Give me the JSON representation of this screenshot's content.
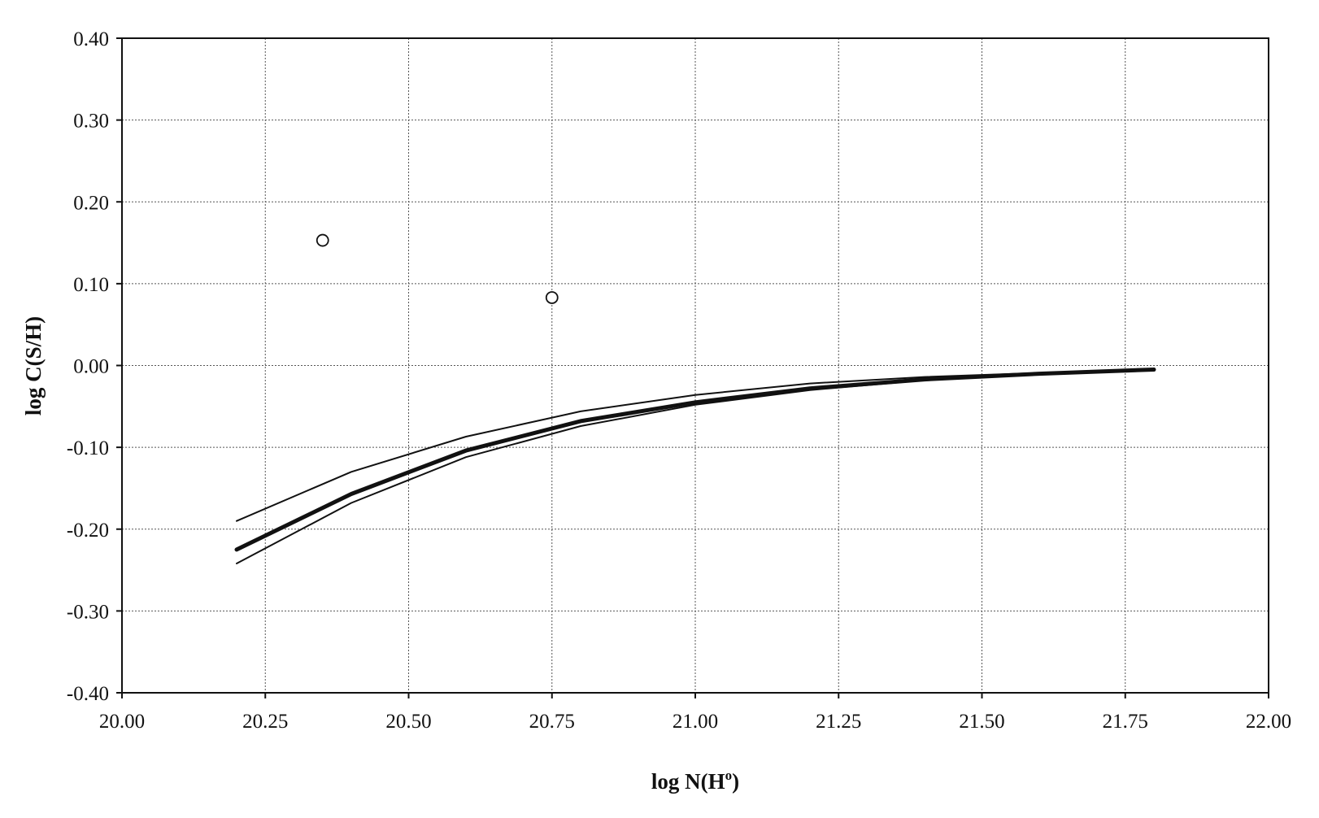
{
  "chart_data": {
    "type": "line",
    "title": "",
    "xlabel": "log N(H",
    "xlabel_sup": "o",
    "xlabel_tail": ")",
    "ylabel": "log C(S/H)",
    "xlim": [
      20.0,
      22.0
    ],
    "ylim": [
      -0.4,
      0.4
    ],
    "x_ticks": [
      "20.00",
      "20.25",
      "20.50",
      "20.75",
      "21.00",
      "21.25",
      "21.50",
      "21.75",
      "22.00"
    ],
    "y_ticks": [
      "0.40",
      "0.30",
      "0.20",
      "0.10",
      "0.00",
      "-0.10",
      "-0.20",
      "-0.30",
      "-0.40"
    ],
    "x_tick_values": [
      20.0,
      20.25,
      20.5,
      20.75,
      21.0,
      21.25,
      21.5,
      21.75,
      22.0
    ],
    "y_tick_values": [
      0.4,
      0.3,
      0.2,
      0.1,
      0.0,
      -0.1,
      -0.2,
      -0.3,
      -0.4
    ],
    "grid": true,
    "series": [
      {
        "style": "thin-upper",
        "points": [
          [
            20.2,
            -0.19
          ],
          [
            20.4,
            -0.13
          ],
          [
            20.6,
            -0.087
          ],
          [
            20.8,
            -0.056
          ],
          [
            21.0,
            -0.036
          ],
          [
            21.2,
            -0.022
          ],
          [
            21.4,
            -0.014
          ],
          [
            21.6,
            -0.009
          ],
          [
            21.8,
            -0.005
          ]
        ]
      },
      {
        "style": "thick-main",
        "points": [
          [
            20.2,
            -0.225
          ],
          [
            20.4,
            -0.157
          ],
          [
            20.6,
            -0.104
          ],
          [
            20.8,
            -0.068
          ],
          [
            21.0,
            -0.045
          ],
          [
            21.2,
            -0.028
          ],
          [
            21.4,
            -0.017
          ],
          [
            21.6,
            -0.01
          ],
          [
            21.8,
            -0.005
          ]
        ]
      },
      {
        "style": "thin-lower",
        "points": [
          [
            20.2,
            -0.242
          ],
          [
            20.4,
            -0.168
          ],
          [
            20.6,
            -0.112
          ],
          [
            20.8,
            -0.074
          ],
          [
            21.0,
            -0.048
          ],
          [
            21.2,
            -0.03
          ],
          [
            21.4,
            -0.018
          ],
          [
            21.6,
            -0.011
          ],
          [
            21.8,
            -0.006
          ]
        ]
      }
    ],
    "scatter": [
      {
        "x": 20.35,
        "y": 0.153
      },
      {
        "x": 20.75,
        "y": 0.083
      }
    ]
  }
}
